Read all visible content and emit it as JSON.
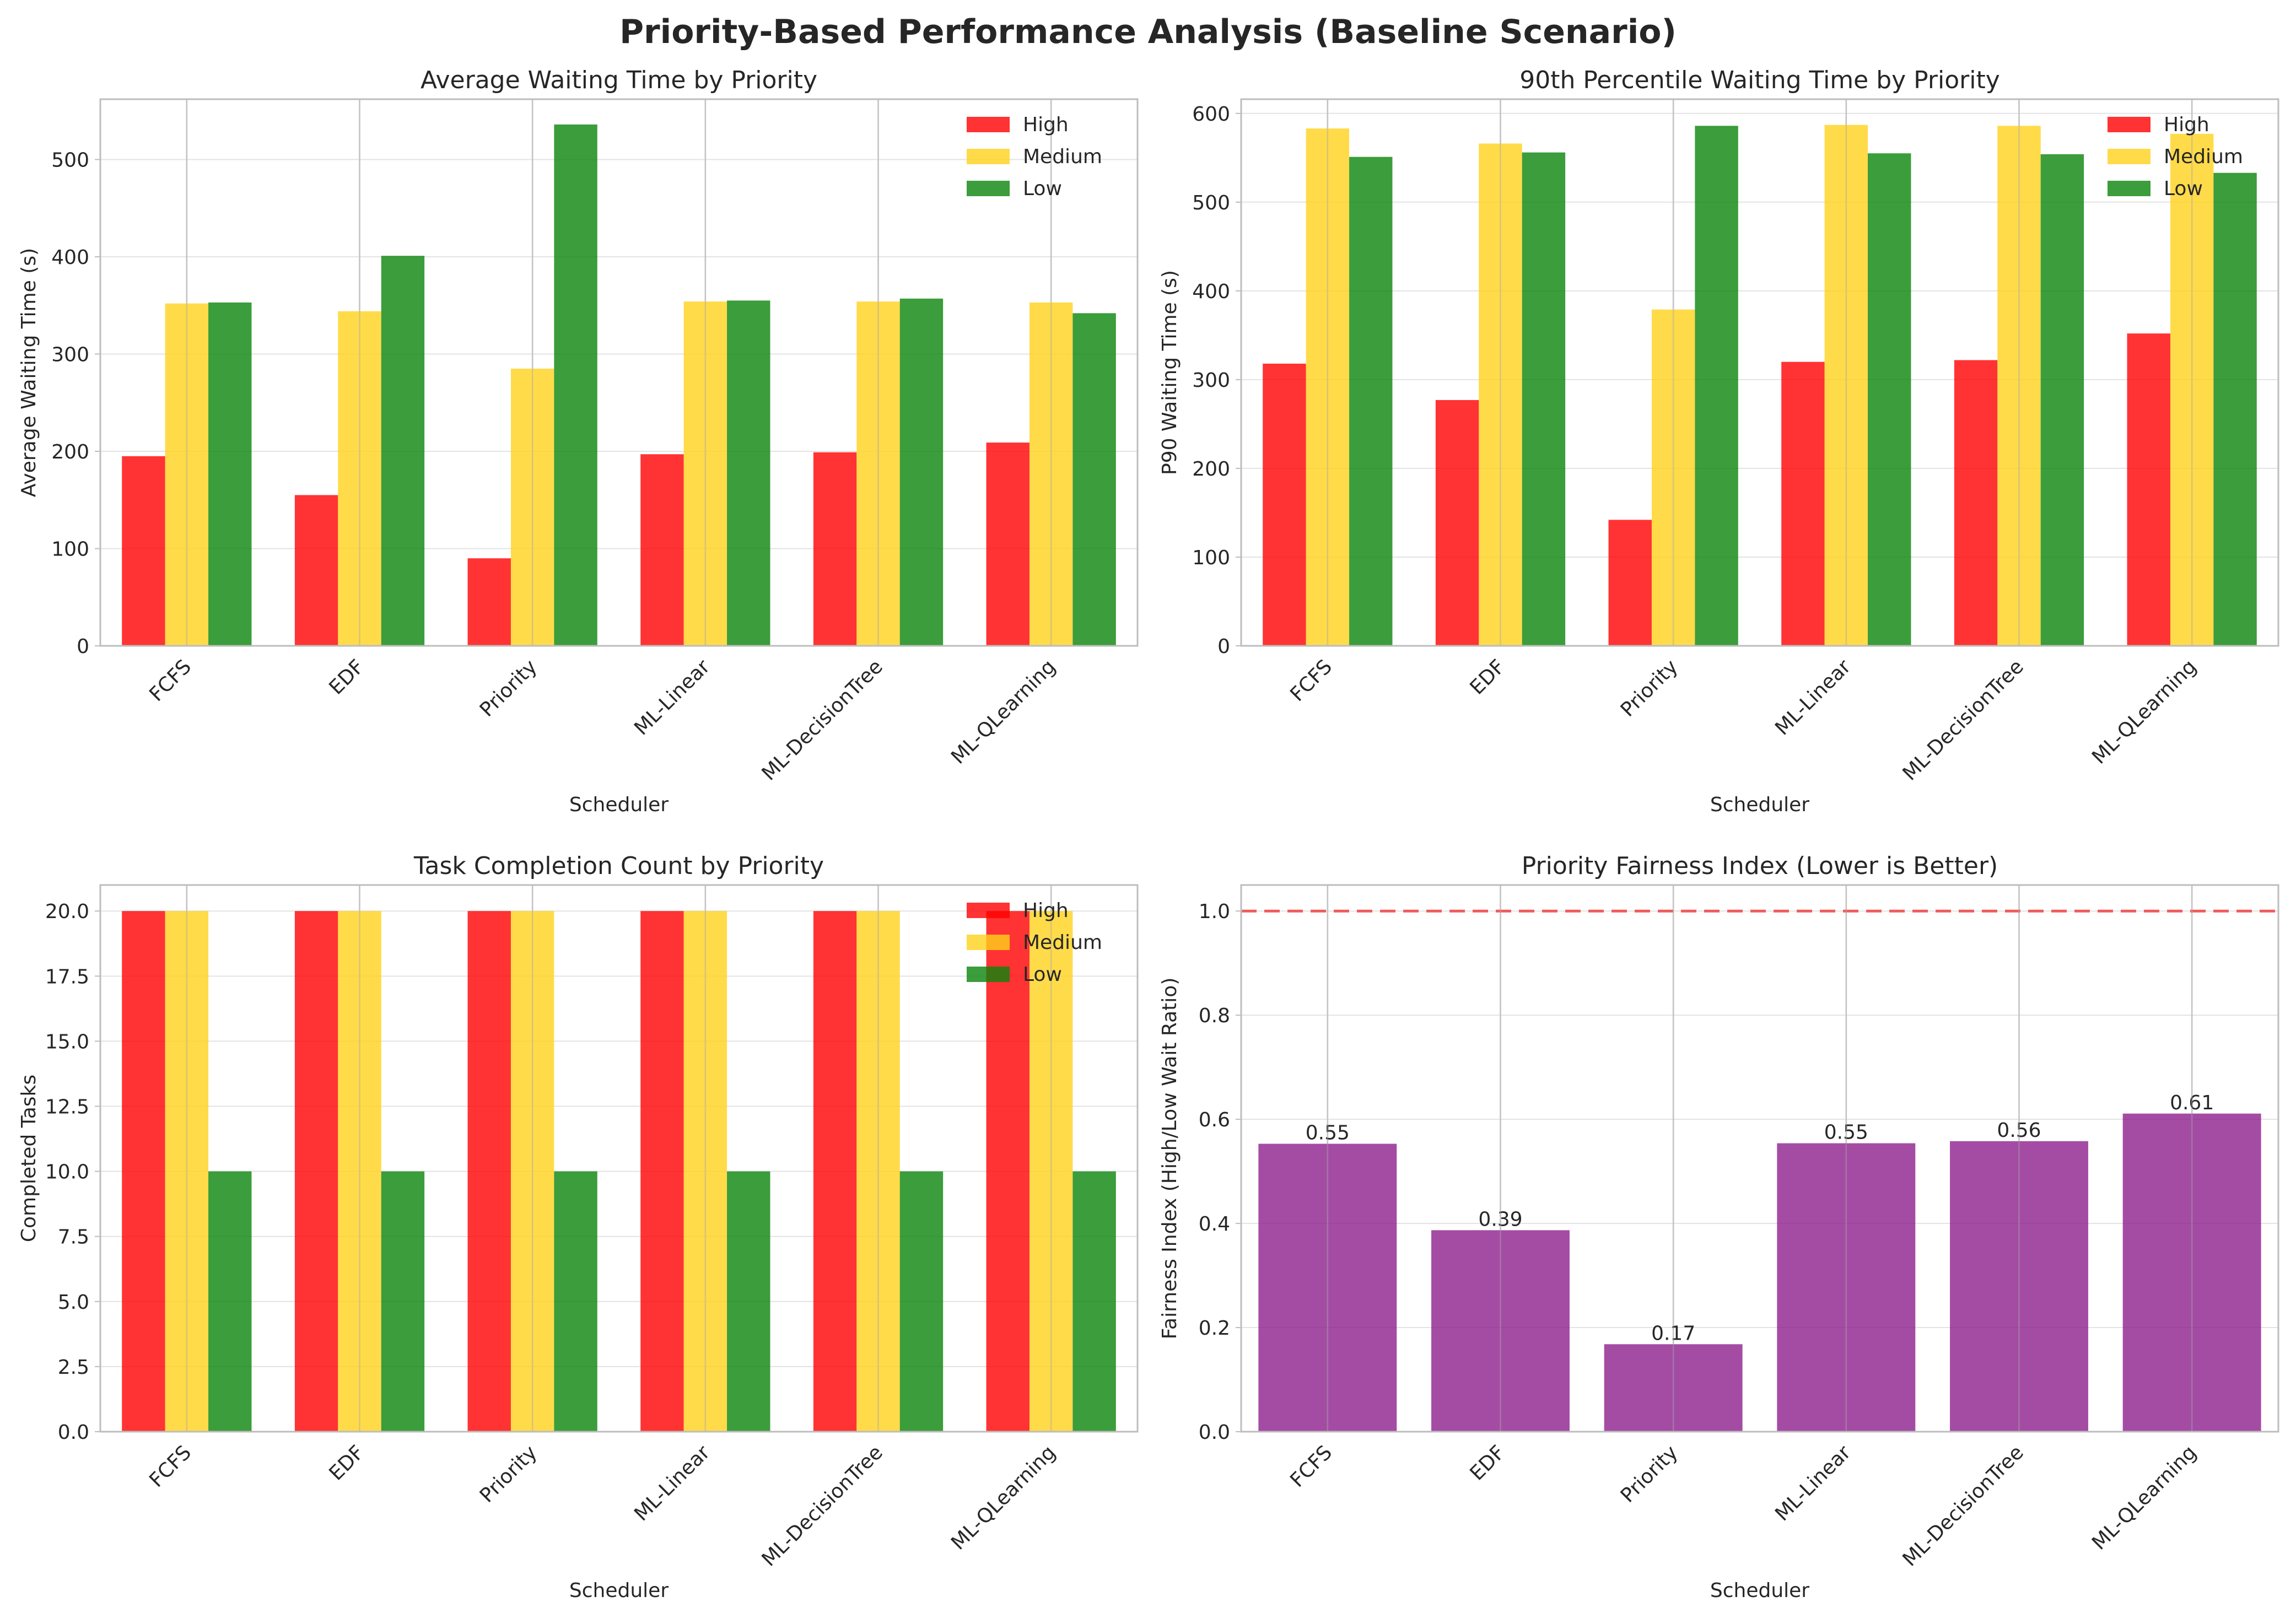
{
  "figure": {
    "title": "Priority-Based Performance Analysis (Baseline Scenario)"
  },
  "colors": {
    "High": "#ff0000",
    "Medium": "#ffd21c",
    "Low": "#0a850a",
    "fairness_bar": "#8b1a8b",
    "reference_line": "#ef5b5b",
    "grid": "#e3e3e3",
    "axes": "#bdbdbd"
  },
  "chart_data": [
    {
      "id": "avg",
      "type": "bar",
      "title": "Average Waiting Time by Priority",
      "xlabel": "Scheduler",
      "ylabel": "Average Waiting Time (s)",
      "categories": [
        "FCFS",
        "EDF",
        "Priority",
        "ML-Linear",
        "ML-DecisionTree",
        "ML-QLearning"
      ],
      "series": [
        {
          "name": "High",
          "values": [
            195,
            155,
            90,
            197,
            199,
            209
          ]
        },
        {
          "name": "Medium",
          "values": [
            352,
            344,
            285,
            354,
            354,
            353
          ]
        },
        {
          "name": "Low",
          "values": [
            353,
            401,
            536,
            355,
            357,
            342
          ]
        }
      ],
      "ylim": [
        0,
        562
      ],
      "yticks": [
        0,
        100,
        200,
        300,
        400,
        500
      ],
      "grid": true,
      "legend": "top-right"
    },
    {
      "id": "p90",
      "type": "bar",
      "title": "90th Percentile Waiting Time by Priority",
      "xlabel": "Scheduler",
      "ylabel": "P90 Waiting Time (s)",
      "categories": [
        "FCFS",
        "EDF",
        "Priority",
        "ML-Linear",
        "ML-DecisionTree",
        "ML-QLearning"
      ],
      "series": [
        {
          "name": "High",
          "values": [
            318,
            277,
            142,
            320,
            322,
            352
          ]
        },
        {
          "name": "Medium",
          "values": [
            583,
            566,
            379,
            587,
            586,
            577
          ]
        },
        {
          "name": "Low",
          "values": [
            551,
            556,
            586,
            555,
            554,
            533
          ]
        }
      ],
      "ylim": [
        0,
        616
      ],
      "yticks": [
        0,
        100,
        200,
        300,
        400,
        500,
        600
      ],
      "grid": true,
      "legend": "top-right"
    },
    {
      "id": "count",
      "type": "bar",
      "title": "Task Completion Count by Priority",
      "xlabel": "Scheduler",
      "ylabel": "Completed Tasks",
      "categories": [
        "FCFS",
        "EDF",
        "Priority",
        "ML-Linear",
        "ML-DecisionTree",
        "ML-QLearning"
      ],
      "series": [
        {
          "name": "High",
          "values": [
            20,
            20,
            20,
            20,
            20,
            20
          ]
        },
        {
          "name": "Medium",
          "values": [
            20,
            20,
            20,
            20,
            20,
            20
          ]
        },
        {
          "name": "Low",
          "values": [
            10,
            10,
            10,
            10,
            10,
            10
          ]
        }
      ],
      "ylim": [
        0,
        21
      ],
      "yticks": [
        0.0,
        2.5,
        5.0,
        7.5,
        10.0,
        12.5,
        15.0,
        17.5,
        20.0
      ],
      "tick_decimals": 1,
      "grid": true,
      "legend": "top-right"
    },
    {
      "id": "fair",
      "type": "bar",
      "title": "Priority Fairness Index (Lower is Better)",
      "xlabel": "Scheduler",
      "ylabel": "Fairness Index (High/Low Wait Ratio)",
      "categories": [
        "FCFS",
        "EDF",
        "Priority",
        "ML-Linear",
        "ML-DecisionTree",
        "ML-QLearning"
      ],
      "values": [
        0.553,
        0.387,
        0.168,
        0.554,
        0.558,
        0.611
      ],
      "data_labels": [
        "0.55",
        "0.39",
        "0.17",
        "0.55",
        "0.56",
        "0.61"
      ],
      "reference_line": 1.0,
      "ylim": [
        0,
        1.05
      ],
      "yticks": [
        0.0,
        0.2,
        0.4,
        0.6,
        0.8,
        1.0
      ],
      "tick_decimals": 1,
      "grid": true
    }
  ]
}
